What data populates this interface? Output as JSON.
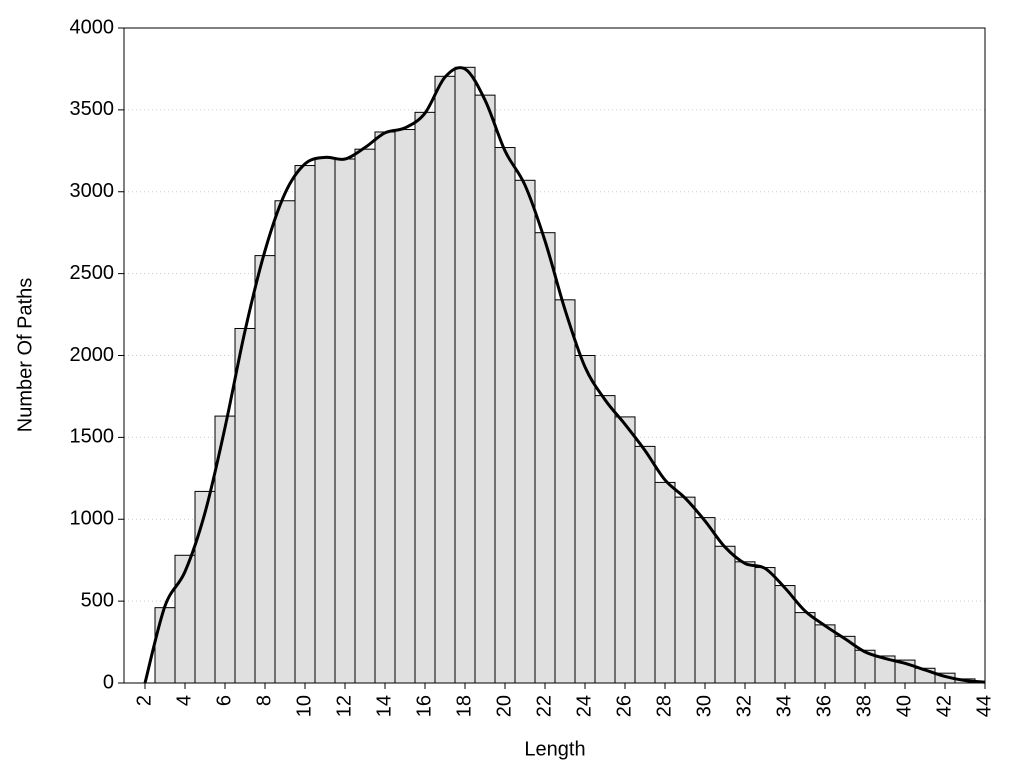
{
  "chart_data": {
    "type": "histogram",
    "x_label": "Length",
    "y_label": "Number Of Paths",
    "bins": [
      2.5,
      3.5,
      4.5,
      5.5,
      6.5,
      7.5,
      8.5,
      9.5,
      10.5,
      11.5,
      12.5,
      13.5,
      14.5,
      15.5,
      16.5,
      17.5,
      18.5,
      19.5,
      20.5,
      21.5,
      22.5,
      23.5,
      24.5,
      25.5,
      26.5,
      27.5,
      28.5,
      29.5,
      30.5,
      31.5,
      32.5,
      33.5,
      34.5,
      35.5,
      36.5,
      37.5,
      38.5,
      39.5,
      40.5,
      41.5,
      42.5,
      43.5
    ],
    "values": [
      460,
      780,
      1170,
      1630,
      2165,
      2610,
      2945,
      3160,
      3205,
      3200,
      3260,
      3365,
      3380,
      3485,
      3705,
      3760,
      3590,
      3270,
      3070,
      2750,
      2340,
      2000,
      1755,
      1625,
      1445,
      1225,
      1135,
      1010,
      835,
      740,
      705,
      595,
      430,
      355,
      285,
      200,
      165,
      140,
      90,
      60,
      25
    ],
    "color": "#e0e0e0",
    "line": {
      "color": "#000000",
      "x": [
        2,
        3,
        4,
        5,
        6,
        7,
        8,
        9,
        10,
        11,
        12,
        13,
        14,
        15,
        16,
        17,
        18,
        19,
        20,
        21,
        22,
        23,
        24,
        25,
        26,
        27,
        28,
        29,
        30,
        31,
        32,
        33,
        34,
        35,
        36,
        37,
        38,
        39,
        40,
        41,
        42,
        43,
        44
      ],
      "values": [
        0,
        470,
        680,
        1040,
        1560,
        2150,
        2640,
        2990,
        3170,
        3210,
        3200,
        3270,
        3360,
        3390,
        3480,
        3700,
        3750,
        3560,
        3250,
        3040,
        2700,
        2280,
        1930,
        1730,
        1580,
        1420,
        1240,
        1130,
        990,
        830,
        730,
        700,
        580,
        440,
        350,
        270,
        190,
        150,
        120,
        80,
        40,
        15,
        5
      ]
    },
    "xlim": [
      0.95,
      44
    ],
    "ylim": [
      0,
      4000
    ],
    "xticks": [
      2,
      4,
      6,
      8,
      10,
      12,
      14,
      16,
      18,
      20,
      22,
      24,
      26,
      28,
      30,
      32,
      34,
      36,
      38,
      40,
      42,
      44
    ],
    "yticks": [
      0,
      500,
      1000,
      1500,
      2000,
      2500,
      3000,
      3500,
      4000
    ],
    "grid": true
  }
}
